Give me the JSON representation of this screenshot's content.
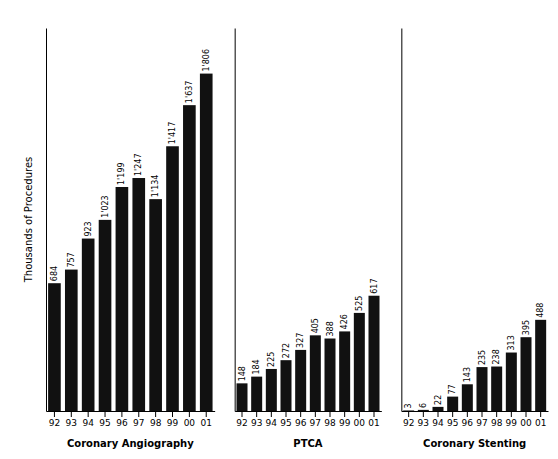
{
  "chart_data": [
    {
      "type": "bar",
      "xlabel": "Coronary Angiography",
      "ylabel": "Thousands of Procedures",
      "categories": [
        "92",
        "93",
        "94",
        "95",
        "96",
        "97",
        "98",
        "99",
        "00",
        "01"
      ],
      "values": [
        684,
        757,
        923,
        1023,
        1199,
        1247,
        1134,
        1417,
        1637,
        1806
      ],
      "value_labels": [
        "684",
        "757",
        "923",
        "1'023",
        "1'199",
        "1'247",
        "1'134",
        "1'417",
        "1'637",
        "1'806"
      ],
      "color": "#111111",
      "ylim": [
        0,
        2050
      ],
      "data_labels": true,
      "tick_labels": "x"
    },
    {
      "type": "bar",
      "xlabel": "PTCA",
      "categories": [
        "92",
        "93",
        "94",
        "95",
        "96",
        "97",
        "98",
        "99",
        "00",
        "01"
      ],
      "values": [
        148,
        184,
        225,
        272,
        327,
        405,
        388,
        426,
        525,
        617
      ],
      "color": "#111111",
      "ylim": [
        0,
        2050
      ],
      "data_labels": true,
      "tick_labels": "x"
    },
    {
      "type": "bar",
      "xlabel": "Coronary Stenting",
      "categories": [
        "92",
        "93",
        "94",
        "95",
        "96",
        "97",
        "98",
        "99",
        "00",
        "01"
      ],
      "values": [
        3,
        6,
        22,
        77,
        143,
        235,
        238,
        313,
        395,
        488
      ],
      "color": "#111111",
      "ylim": [
        0,
        2050
      ],
      "data_labels": true,
      "tick_labels": "x"
    }
  ]
}
